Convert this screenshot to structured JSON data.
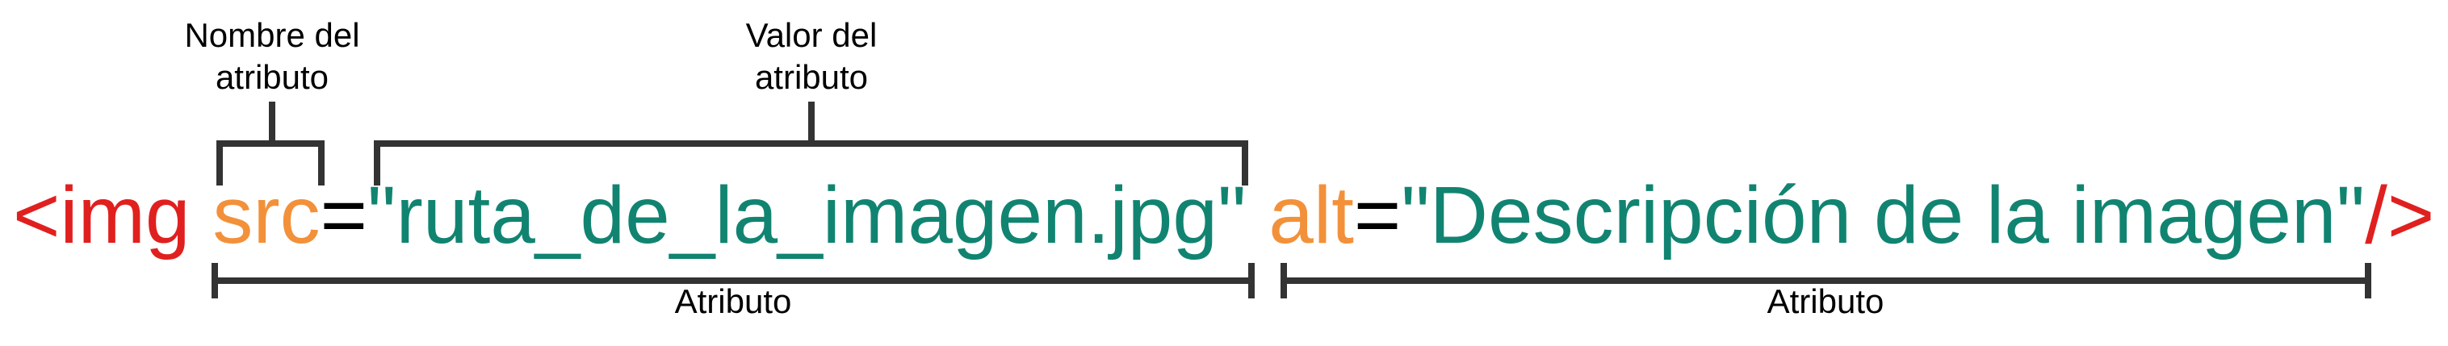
{
  "code": {
    "tag_open": "<img",
    "space1": " ",
    "attr1_name": "src",
    "equals1": "=",
    "attr1_value": "\"ruta_de_la_imagen.jpg\"",
    "space2": " ",
    "attr2_name": "alt",
    "equals2": "=",
    "attr2_value": "\"Descripción de la imagen\"",
    "tag_close": "/>"
  },
  "labels": {
    "attr_name": "Nombre del\natributo",
    "attr_value": "Valor del\natributo",
    "attribute_1": "Atributo",
    "attribute_2": "Atributo"
  },
  "colors": {
    "tag": "#e0201f",
    "attr_name": "#f2913a",
    "equals": "#000000",
    "attr_value": "#118471",
    "bracket": "#333333",
    "label_text": "#000000"
  }
}
